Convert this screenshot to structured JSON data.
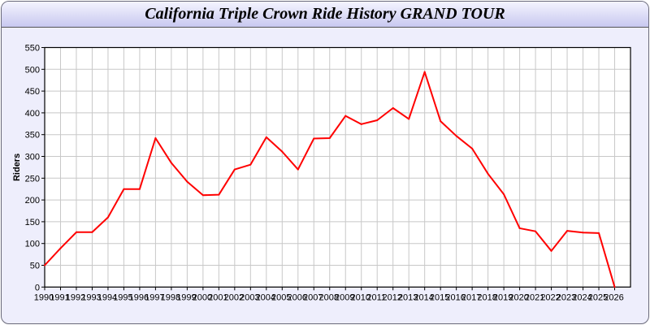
{
  "chart_data": {
    "type": "line",
    "title": "California Triple Crown Ride History GRAND TOUR",
    "xlabel": "",
    "ylabel": "Riders",
    "xlim": [
      1990,
      2027
    ],
    "ylim": [
      0,
      550
    ],
    "yticks": [
      0,
      50,
      100,
      150,
      200,
      250,
      300,
      350,
      400,
      450,
      500,
      550
    ],
    "grid": true,
    "line_color": "#ff0000",
    "x": [
      1990,
      1991,
      1992,
      1993,
      1994,
      1995,
      1996,
      1997,
      1998,
      1999,
      2000,
      2001,
      2002,
      2003,
      2004,
      2005,
      2006,
      2007,
      2008,
      2009,
      2010,
      2011,
      2012,
      2013,
      2014,
      2015,
      2016,
      2017,
      2018,
      2019,
      2020,
      2021,
      2022,
      2023,
      2024,
      2025,
      2026
    ],
    "series": [
      {
        "values": [
          50,
          89,
          126,
          126,
          160,
          225,
          225,
          342,
          285,
          242,
          211,
          212,
          270,
          281,
          344,
          311,
          270,
          341,
          342,
          393,
          374,
          383,
          411,
          386,
          494,
          381,
          347,
          318,
          260,
          213,
          135,
          128,
          83,
          129,
          125,
          124,
          0
        ]
      }
    ]
  }
}
